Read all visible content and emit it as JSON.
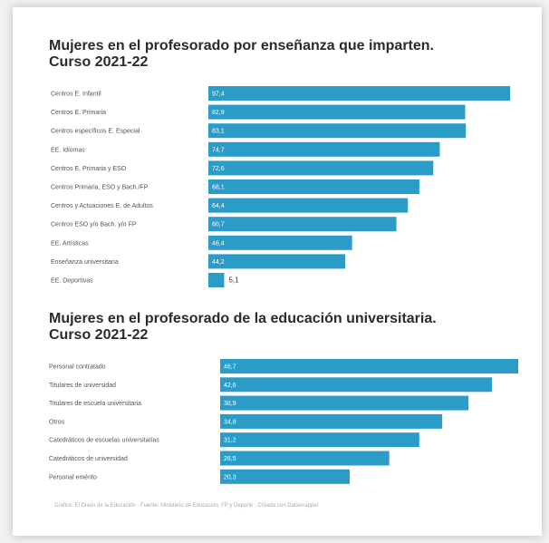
{
  "chart_data": [
    {
      "type": "bar",
      "orientation": "horizontal",
      "title": "Mujeres en el profesorado por enseñanza que imparten. Curso 2021-22",
      "title_lines": [
        "Mujeres en el profesorado por enseñanza que imparten.",
        "Curso 2021-22"
      ],
      "categories": [
        "Centros E. Infantil",
        "Centros E. Primaria",
        "Centros específicos E. Especial",
        "EE. Idiomas",
        "Centros E. Primaria y ESO",
        "Centros Primaria, ESO y Bach./FP",
        "Centros y Actuaciones E. de Adultos",
        "Centros ESO y/o Bach. y/o FP",
        "EE. Artísticas",
        "Enseñanza universitaria",
        "EE. Deportivas"
      ],
      "values": [
        97.4,
        82.9,
        83.1,
        74.7,
        72.6,
        68.1,
        64.4,
        60.7,
        46.4,
        44.2,
        5.1
      ],
      "value_labels": [
        "97,4",
        "82,9",
        "83,1",
        "74,7",
        "72,6",
        "68,1",
        "64,4",
        "60,7",
        "46,4",
        "44,2",
        "5,1"
      ],
      "xlim": [
        0,
        100
      ],
      "bar_color": "#2b9cc7"
    },
    {
      "type": "bar",
      "orientation": "horizontal",
      "title": "Mujeres en el profesorado de la educación universitaria. Curso 2021-22",
      "title_lines": [
        "Mujeres en el profesorado de la educación universitaria.",
        "Curso 2021-22"
      ],
      "categories": [
        "Personal contratado",
        "Titulares de universidad",
        "Titulares de escuela universitaria",
        "Otros",
        "Catedráticos de escuelas universitarias",
        "Catedráticos de universidad",
        "Personal emérito"
      ],
      "values": [
        46.7,
        42.6,
        38.9,
        34.8,
        31.2,
        26.5,
        20.3
      ],
      "value_labels": [
        "46,7",
        "42,6",
        "38,9",
        "34,8",
        "31,2",
        "26,5",
        "20,3"
      ],
      "xlim": [
        0,
        46.7
      ],
      "bar_color": "#2b9cc7"
    }
  ],
  "source": "Gráfico: El Diario de la Educación · Fuente: Ministerio de Educación, FP y Deporte · Creado con Datawrapper"
}
